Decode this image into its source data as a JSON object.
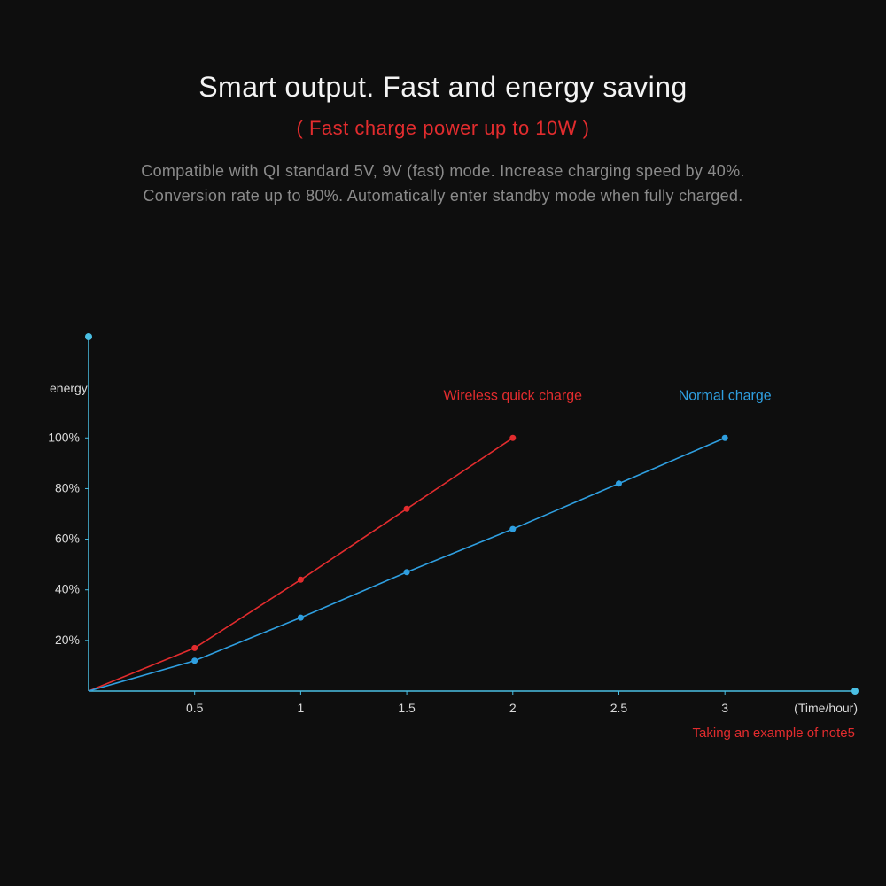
{
  "header": {
    "title": "Smart output. Fast and energy saving",
    "subtitle": "( Fast charge power up to 10W )",
    "desc_line1": "Compatible with  QI standard 5V, 9V (fast) mode. Increase charging speed by  40%.",
    "desc_line2": "Conversion rate up to 80%. Automatically enter standby mode when fully charged."
  },
  "chart": {
    "type": "line+bar",
    "background_color": "#0e0e0e",
    "axis_color": "#4abfe3",
    "axis_width": 1.5,
    "endpoint_dot_color": "#4abfe3",
    "endpoint_dot_radius": 4,
    "bar_color": "#2a2a2a",
    "bar_opacity": 0.55,
    "bar_width_ratio": 0.65,
    "grid": false,
    "x": {
      "label": "(Time/hour)",
      "label_color": "#d9d9d9",
      "label_fontsize": 14,
      "ticks": [
        "0.5",
        "1",
        "1.5",
        "2",
        "2.5",
        "3"
      ],
      "tick_color": "#d9d9d9",
      "tick_fontsize": 14,
      "xlim": [
        0,
        3.3
      ]
    },
    "y": {
      "label": "energy",
      "label_color": "#d9d9d9",
      "label_fontsize": 14,
      "ticks": [
        "20%",
        "40%",
        "60%",
        "80%",
        "100%"
      ],
      "tick_values": [
        20,
        40,
        60,
        80,
        100
      ],
      "tick_color": "#d9d9d9",
      "tick_fontsize": 14,
      "ylim": [
        0,
        140
      ]
    },
    "bars": {
      "x": [
        0.5,
        1,
        1.5,
        2,
        2.5,
        3
      ],
      "height": [
        30,
        55,
        78,
        100,
        100,
        100
      ]
    },
    "series": [
      {
        "name": "Wireless quick charge",
        "label_color": "#e22c2e",
        "line_color": "#e22c2e",
        "marker_color": "#e22c2e",
        "marker_radius": 3.5,
        "line_width": 1.6,
        "x": [
          0,
          0.5,
          1,
          1.5,
          2
        ],
        "y": [
          0,
          17,
          44,
          72,
          100
        ],
        "label_pos": {
          "hour": 2,
          "val": 115
        }
      },
      {
        "name": "Normal charge",
        "label_color": "#2f9fe0",
        "line_color": "#2f9fe0",
        "marker_color": "#2f9fe0",
        "marker_radius": 3.5,
        "line_width": 1.6,
        "x": [
          0,
          0.5,
          1,
          1.5,
          2,
          2.5,
          3
        ],
        "y": [
          0,
          12,
          29,
          47,
          64,
          82,
          100
        ],
        "label_pos": {
          "hour": 3,
          "val": 115
        }
      }
    ],
    "footnote": {
      "text": "Taking an example of note5",
      "color": "#e22c2e",
      "fontsize": 15
    }
  }
}
